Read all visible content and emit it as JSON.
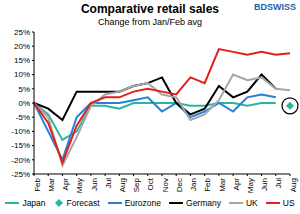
{
  "chart_data": {
    "type": "line",
    "title": "Comparative retail sales",
    "subtitle": "Change from Jan/Feb avg",
    "annotations": [
      "BDSWISS"
    ],
    "categories": [
      "Feb",
      "Mar",
      "Apr",
      "May",
      "Jun",
      "Jul",
      "Aug",
      "Sep",
      "Oct",
      "Nov",
      "Dec",
      "Jan",
      "Feb",
      "Mar",
      "Apr",
      "May",
      "Jun",
      "Jul",
      "Aug"
    ],
    "series": [
      {
        "name": "Japan",
        "color": "#2ab5a0",
        "values": [
          0,
          -4,
          -13,
          -10,
          -1,
          -1,
          -2,
          0,
          0,
          0,
          0,
          -1,
          -1,
          0,
          0,
          -1,
          0,
          0,
          null
        ]
      },
      {
        "name": "Forecast",
        "color": "#2ab5a0",
        "type": "scatter",
        "marker": "diamond",
        "values": [
          null,
          null,
          null,
          null,
          null,
          null,
          null,
          null,
          null,
          null,
          null,
          null,
          null,
          null,
          null,
          null,
          null,
          null,
          -1
        ]
      },
      {
        "name": "Eurozone",
        "color": "#2a7fd4",
        "values": [
          0,
          -10,
          -20,
          -5,
          0,
          0,
          0,
          1,
          2,
          -3,
          0,
          -5,
          -3,
          0,
          -3,
          2,
          3,
          2,
          null
        ]
      },
      {
        "name": "Germany",
        "color": "#000000",
        "values": [
          0,
          -2,
          -6,
          4,
          4,
          4,
          4,
          6,
          7,
          9,
          0,
          -4,
          -2,
          6,
          2,
          4,
          10,
          5,
          null
        ]
      },
      {
        "name": "UK",
        "color": "#a6a6a6",
        "values": [
          0,
          -5,
          -22,
          -12,
          -1,
          3,
          4,
          6,
          7,
          3,
          2,
          -6,
          -4,
          1,
          10,
          8,
          9,
          5,
          4.5
        ]
      },
      {
        "name": "US",
        "color": "#e0201b",
        "values": [
          0,
          -7,
          -21,
          -8,
          0,
          2,
          2,
          4,
          5,
          4,
          3,
          9,
          7,
          19,
          18,
          17,
          18,
          17,
          17.5
        ]
      }
    ],
    "ylim": [
      -25,
      25
    ],
    "yticks": [
      {
        "value": -25,
        "label": "-25%"
      },
      {
        "value": -20,
        "label": "-20%"
      },
      {
        "value": -15,
        "label": "-15%"
      },
      {
        "value": -10,
        "label": "-10%"
      },
      {
        "value": -5,
        "label": "-5%"
      },
      {
        "value": 0,
        "label": "0%"
      },
      {
        "value": 5,
        "label": "5%"
      },
      {
        "value": 10,
        "label": "10%"
      },
      {
        "value": 15,
        "label": "15%"
      },
      {
        "value": 20,
        "label": "20%"
      },
      {
        "value": 25,
        "label": "25%"
      }
    ],
    "grid": false,
    "legend": "bottom"
  }
}
